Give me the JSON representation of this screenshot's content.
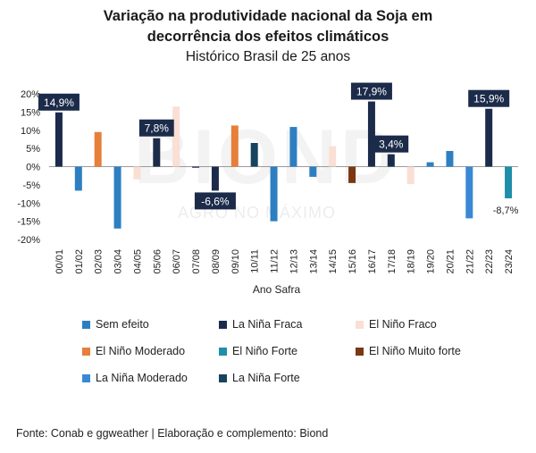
{
  "title_line1": "Variação na produtividade nacional da Soja em",
  "title_line2": "decorrência dos efeitos climáticos",
  "subtitle": "Histórico Brasil de 25 anos",
  "watermark": {
    "main": "BIOND",
    "sub": "AGRO NO MÁXIMO"
  },
  "footer": "Fonte: Conab e ggweather | Elaboração e complemento: Biond",
  "colors": {
    "sem_efeito": "#2d7fc1",
    "la_nina_fraca": "#1c2b4a",
    "el_nino_fraco": "#f9dfd4",
    "el_nino_moderado": "#e67f3a",
    "el_nino_forte": "#1f8ea8",
    "el_nino_muito_forte": "#7a3713",
    "la_nina_moderado": "#3a88d4",
    "la_nina_forte": "#17435e",
    "label_box": "#1c2b4a"
  },
  "legend": [
    {
      "key": "sem_efeito",
      "label": "Sem efeito"
    },
    {
      "key": "la_nina_fraca",
      "label": "La Niña Fraca"
    },
    {
      "key": "el_nino_fraco",
      "label": "El Niño Fraco"
    },
    {
      "key": "el_nino_moderado",
      "label": "El Niño Moderado"
    },
    {
      "key": "el_nino_forte",
      "label": "El Niño Forte"
    },
    {
      "key": "el_nino_muito_forte",
      "label": "El Niño Muito forte"
    },
    {
      "key": "la_nina_moderado",
      "label": "La Niña Moderado"
    },
    {
      "key": "la_nina_forte",
      "label": "La Niña Forte"
    }
  ],
  "chart_data": {
    "type": "bar",
    "title": "Variação na produtividade nacional da Soja em decorrência dos efeitos climáticos",
    "subtitle": "Histórico Brasil de 25 anos",
    "xlabel": "Ano Safra",
    "ylabel": "",
    "ylim": [
      -20,
      20
    ],
    "yticks": [
      20,
      15,
      10,
      5,
      0,
      -5,
      -10,
      -15,
      -20
    ],
    "ytick_labels": [
      "20%",
      "15%",
      "10%",
      "5%",
      "0%",
      "-5%",
      "-10%",
      "-15%",
      "-20%"
    ],
    "categories": [
      "00/01",
      "01/02",
      "02/03",
      "03/04",
      "04/05",
      "05/06",
      "06/07",
      "07/08",
      "08/09",
      "09/10",
      "10/11",
      "11/12",
      "12/13",
      "13/14",
      "14/15",
      "15/16",
      "16/17",
      "17/18",
      "18/19",
      "19/20",
      "20/21",
      "21/22",
      "22/23",
      "23/24"
    ],
    "values": [
      14.9,
      -6.6,
      9.5,
      -17.0,
      -3.5,
      7.8,
      16.5,
      -0.3,
      -6.6,
      11.3,
      6.5,
      -15.0,
      10.9,
      -2.8,
      5.6,
      -4.5,
      17.9,
      3.4,
      -4.8,
      1.2,
      4.3,
      -14.2,
      15.9,
      -8.7
    ],
    "climate": [
      "la_nina_fraca",
      "sem_efeito",
      "el_nino_moderado",
      "sem_efeito",
      "el_nino_fraco",
      "la_nina_fraca",
      "el_nino_fraco",
      "la_nina_fraca",
      "la_nina_fraca",
      "el_nino_moderado",
      "la_nina_forte",
      "sem_efeito",
      "sem_efeito",
      "sem_efeito",
      "el_nino_fraco",
      "el_nino_muito_forte",
      "la_nina_fraca",
      "la_nina_fraca",
      "el_nino_fraco",
      "sem_efeito",
      "sem_efeito",
      "la_nina_moderado",
      "la_nina_fraca",
      "el_nino_forte"
    ],
    "boxed_labels": [
      {
        "index": 0,
        "text": "14,9%"
      },
      {
        "index": 5,
        "text": "7,8%"
      },
      {
        "index": 8,
        "text": "-6,6%"
      },
      {
        "index": 16,
        "text": "17,9%"
      },
      {
        "index": 17,
        "text": "3,4%"
      },
      {
        "index": 22,
        "text": "15,9%"
      }
    ],
    "plain_labels": [
      {
        "index": 23,
        "text": "-8,7%"
      }
    ]
  }
}
